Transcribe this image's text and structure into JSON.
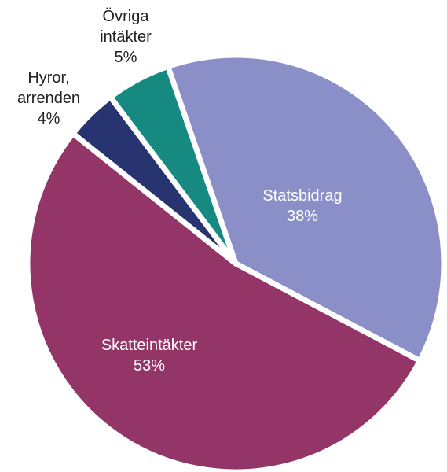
{
  "chart_data": {
    "type": "pie",
    "categories": [
      "Statsbidrag",
      "Skatteintäkter",
      "Hyror, arrenden",
      "Övriga intäkter"
    ],
    "values": [
      38,
      53,
      4,
      5
    ],
    "value_labels": [
      "38%",
      "53%",
      "4%",
      "5%"
    ],
    "colors": [
      "#8a8fc7",
      "#933567",
      "#283470",
      "#168a80"
    ]
  }
}
